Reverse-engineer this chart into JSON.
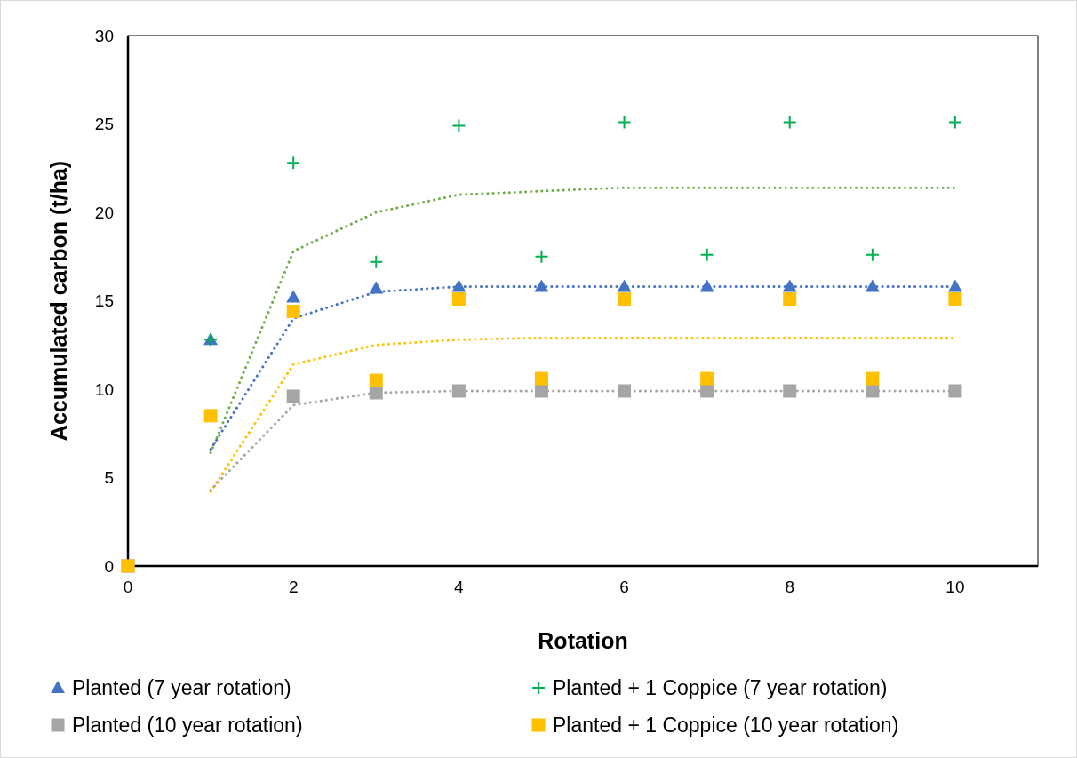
{
  "chart_data": {
    "type": "scatter",
    "xlabel": "Rotation",
    "ylabel": "Accumulated carbon (t/ha)",
    "xlim": [
      0,
      11
    ],
    "xticks": [
      0,
      2,
      4,
      6,
      8,
      10
    ],
    "ylim": [
      0,
      30
    ],
    "yticks": [
      0,
      5,
      10,
      15,
      20,
      25,
      30
    ],
    "grid": false,
    "legend": "bottom",
    "series": [
      {
        "name": "Planted (7 year rotation)",
        "color": "#4472c4",
        "marker": "triangle",
        "x": [
          1,
          2,
          3,
          4,
          5,
          6,
          7,
          8,
          9,
          10
        ],
        "values": [
          12.8,
          15.2,
          15.7,
          15.8,
          15.8,
          15.8,
          15.8,
          15.8,
          15.8,
          15.8
        ]
      },
      {
        "name": "Planted + 1 Coppice (7 year rotation)",
        "color": "#00b050",
        "marker": "cross",
        "x": [
          1,
          2,
          3,
          4,
          5,
          6,
          7,
          8,
          9,
          10
        ],
        "values": [
          12.8,
          22.8,
          17.2,
          24.9,
          17.5,
          25.1,
          17.6,
          25.1,
          17.6,
          25.1
        ]
      },
      {
        "name": "Planted (10 year rotation)",
        "color": "#a5a5a5",
        "marker": "square",
        "x": [
          0,
          2,
          3,
          4,
          5,
          6,
          7,
          8,
          9,
          10
        ],
        "values": [
          0,
          9.6,
          9.8,
          9.9,
          9.9,
          9.9,
          9.9,
          9.9,
          9.9,
          9.9
        ]
      },
      {
        "name": "Planted + 1 Coppice (10 year rotation)",
        "color": "#ffc000",
        "marker": "square",
        "x": [
          0,
          1,
          2,
          3,
          4,
          5,
          6,
          7,
          8,
          9,
          10
        ],
        "values": [
          0,
          8.5,
          14.4,
          10.5,
          15.1,
          10.6,
          15.1,
          10.6,
          15.1,
          10.6,
          15.1
        ]
      },
      {
        "type": "line",
        "color": "#70ad47",
        "line_style": "dotted",
        "marker": "none",
        "x": [
          1,
          2,
          3,
          4,
          5,
          6,
          7,
          8,
          9,
          10
        ],
        "values": [
          6.4,
          17.8,
          20.0,
          21.0,
          21.2,
          21.4,
          21.4,
          21.4,
          21.4,
          21.4
        ]
      },
      {
        "type": "line",
        "color": "#4472c4",
        "line_style": "dotted",
        "marker": "none",
        "x": [
          1,
          2,
          3,
          4,
          5,
          6,
          7,
          8,
          9,
          10
        ],
        "values": [
          6.6,
          14.0,
          15.5,
          15.8,
          15.8,
          15.8,
          15.8,
          15.8,
          15.8,
          15.8
        ]
      },
      {
        "type": "line",
        "color": "#ffc000",
        "line_style": "dotted",
        "marker": "none",
        "x": [
          1,
          2,
          3,
          4,
          5,
          6,
          7,
          8,
          9,
          10
        ],
        "values": [
          4.2,
          11.4,
          12.5,
          12.8,
          12.9,
          12.9,
          12.9,
          12.9,
          12.9,
          12.9
        ]
      },
      {
        "type": "line",
        "color": "#a5a5a5",
        "line_style": "dotted",
        "marker": "none",
        "x": [
          1,
          2,
          3,
          4,
          5,
          6,
          7,
          8,
          9,
          10
        ],
        "values": [
          4.3,
          9.1,
          9.8,
          9.9,
          9.9,
          9.9,
          9.9,
          9.9,
          9.9,
          9.9
        ]
      }
    ]
  }
}
